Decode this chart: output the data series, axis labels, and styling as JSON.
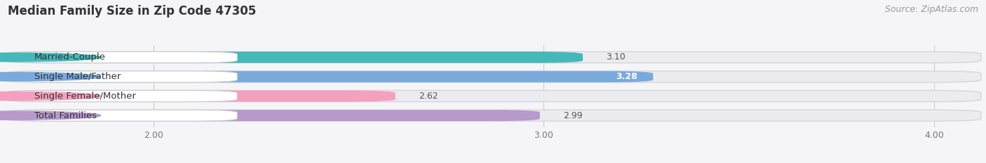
{
  "title": "Median Family Size in Zip Code 47305",
  "source": "Source: ZipAtlas.com",
  "categories": [
    "Married-Couple",
    "Single Male/Father",
    "Single Female/Mother",
    "Total Families"
  ],
  "values": [
    3.1,
    3.28,
    2.62,
    2.99
  ],
  "bar_colors": [
    "#45b8b8",
    "#7aaadd",
    "#f5a0bf",
    "#b899cc"
  ],
  "xlim_left": 1.62,
  "xlim_right": 4.12,
  "xticks": [
    2.0,
    3.0,
    4.0
  ],
  "xtick_labels": [
    "2.00",
    "3.00",
    "4.00"
  ],
  "bar_height": 0.58,
  "row_bg_color": "#ebebf0",
  "fig_bg_color": "#f5f5f8",
  "title_fontsize": 12,
  "source_fontsize": 9,
  "label_fontsize": 9.5,
  "value_fontsize": 9
}
